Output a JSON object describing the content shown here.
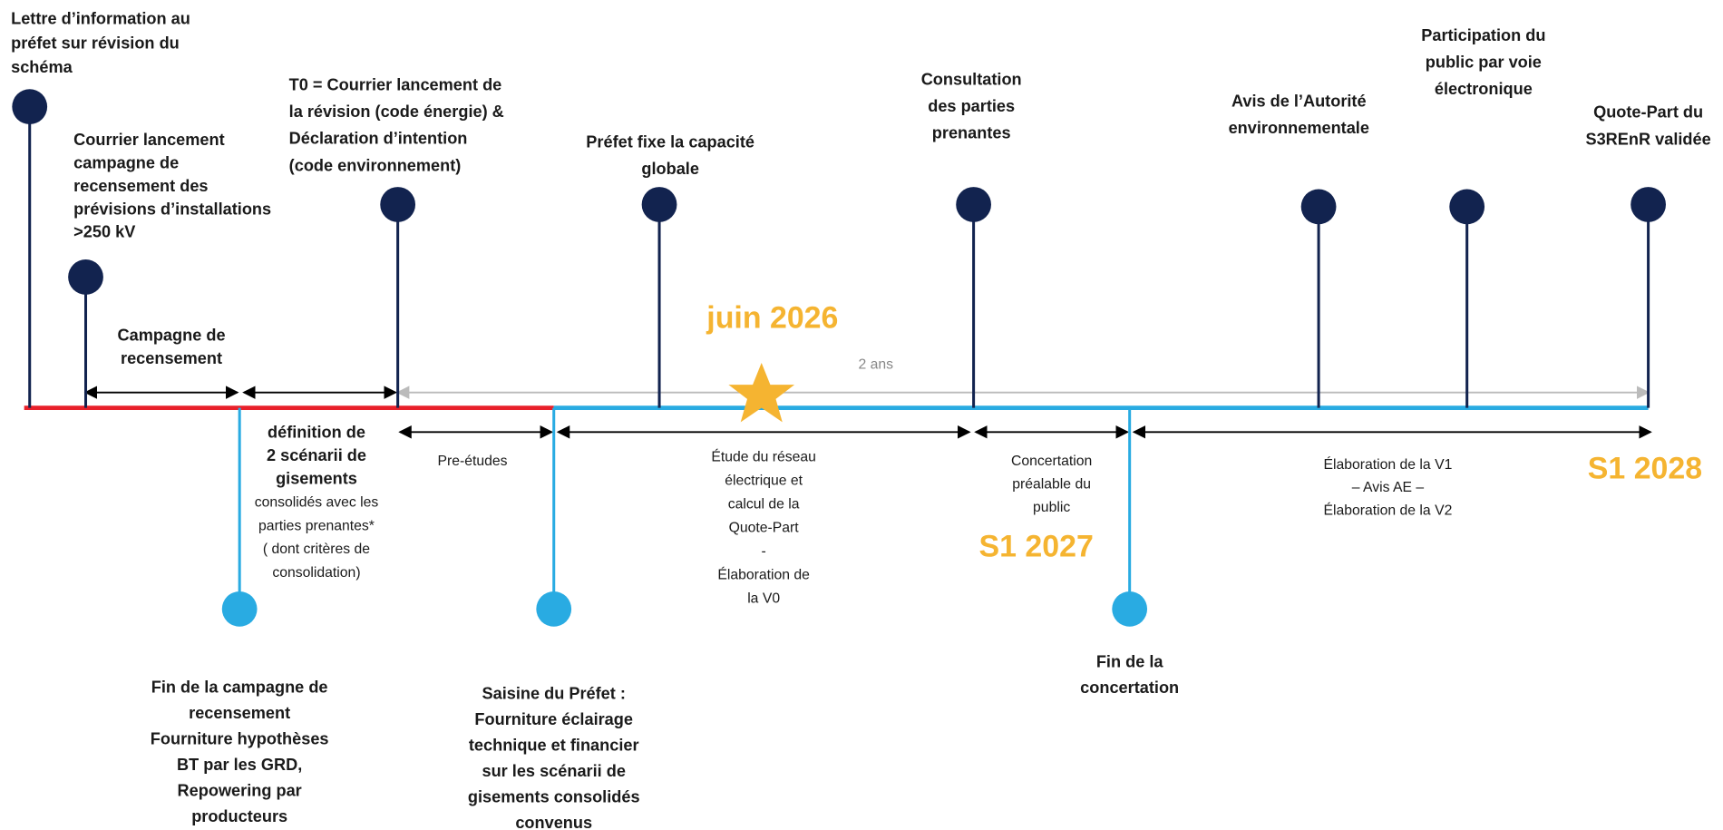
{
  "top_milestones": [
    {
      "lines": [
        "Lettre d’information au",
        "préfet sur révision du",
        "schéma"
      ]
    },
    {
      "lines": [
        "Courrier lancement",
        "campagne de",
        "recensement des",
        "prévisions d’installations",
        " >250 kV"
      ]
    },
    {
      "lines": [
        "T0 = Courrier lancement de",
        "la révision (code énergie) &",
        "Déclaration d’intention",
        "(code environnement)"
      ]
    },
    {
      "lines": [
        "Préfet fixe la capacité",
        "globale"
      ]
    },
    {
      "lines": [
        "Consultation",
        "des parties",
        "prenantes"
      ]
    },
    {
      "lines": [
        "Avis de l’Autorité",
        "environnementale"
      ]
    },
    {
      "lines": [
        "Participation du",
        "public par voie",
        "électronique"
      ]
    },
    {
      "lines": [
        "Quote-Part du",
        "S3REnR validée"
      ]
    }
  ],
  "bottom_milestones": [
    {
      "lines": [
        "Fin de la campagne de",
        "recensement",
        "Fourniture hypothèses",
        "BT par les GRD,",
        "Repowering par",
        "producteurs"
      ]
    },
    {
      "lines": [
        "Saisine du Préfet :",
        "Fourniture éclairage",
        "technique et financier",
        "sur les scénarii de",
        "gisements consolidés",
        "convenus"
      ]
    },
    {
      "lines": [
        "Fin de la",
        "concertation"
      ]
    }
  ],
  "phases": [
    {
      "lines": [
        "Campagne de",
        "recensement"
      ]
    },
    {
      "lines": [
        "définition de",
        "2 scénarii de",
        "gisements",
        "consolidés avec les",
        "parties prenantes*",
        "( dont critères de",
        "consolidation)"
      ]
    },
    {
      "lines": [
        "Pre-études"
      ]
    },
    {
      "lines": [
        "Étude du réseau",
        "électrique et",
        "calcul de la",
        "Quote-Part",
        "-",
        "Élaboration de",
        "la V0"
      ]
    },
    {
      "lines": [
        "Concertation",
        "préalable du",
        "public"
      ]
    },
    {
      "lines": [
        "Élaboration de la V1",
        "– Avis AE –",
        "Élaboration de la V2"
      ]
    }
  ],
  "duration": "2 ans",
  "dates": [
    "juin 2026",
    "S1 2027",
    "S1 2028"
  ]
}
